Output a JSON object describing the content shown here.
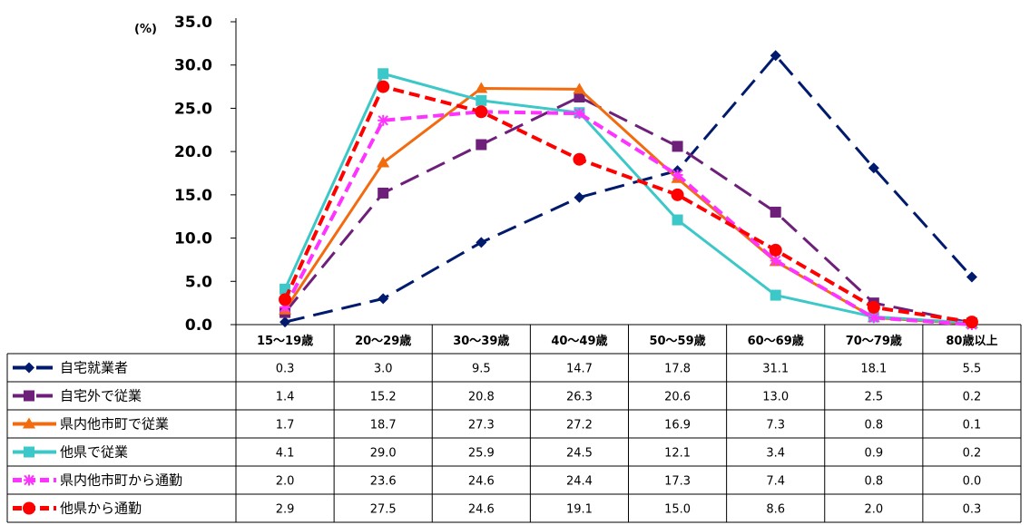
{
  "chart_data": {
    "type": "line",
    "unit_label": "(%)",
    "ylim": [
      0,
      35
    ],
    "ytick_step": 5,
    "ytick_labels": [
      "0.0",
      "5.0",
      "10.0",
      "15.0",
      "20.0",
      "25.0",
      "30.0",
      "35.0"
    ],
    "categories": [
      "15～19歳",
      "20～29歳",
      "30～39歳",
      "40～49歳",
      "50～59歳",
      "60～69歳",
      "70～79歳",
      "80歳以上"
    ],
    "grid": false,
    "legend": "data-table-left",
    "series": [
      {
        "name": "自宅就業者",
        "color": "#001A6E",
        "marker": "diamond",
        "dash": "long",
        "values": [
          0.3,
          3.0,
          9.5,
          14.7,
          17.8,
          31.1,
          18.1,
          5.5
        ],
        "labels": [
          "0.3",
          "3.0",
          "9.5",
          "14.7",
          "17.8",
          "31.1",
          "18.1",
          "5.5"
        ]
      },
      {
        "name": "自宅外で従業",
        "color": "#6E1F7A",
        "marker": "square",
        "dash": "long",
        "values": [
          1.4,
          15.2,
          20.8,
          26.3,
          20.6,
          13.0,
          2.5,
          0.2
        ],
        "labels": [
          "1.4",
          "15.2",
          "20.8",
          "26.3",
          "20.6",
          "13.0",
          "2.5",
          "0.2"
        ]
      },
      {
        "name": "県内他市町で従業",
        "color": "#F26B0F",
        "marker": "triangle",
        "dash": "solid",
        "values": [
          1.7,
          18.7,
          27.3,
          27.2,
          16.9,
          7.3,
          0.8,
          0.1
        ],
        "labels": [
          "1.7",
          "18.7",
          "27.3",
          "27.2",
          "16.9",
          "7.3",
          "0.8",
          "0.1"
        ]
      },
      {
        "name": "他県で従業",
        "color": "#3CC8C8",
        "marker": "square",
        "dash": "solid",
        "values": [
          4.1,
          29.0,
          25.9,
          24.5,
          12.1,
          3.4,
          0.9,
          0.2
        ],
        "labels": [
          "4.1",
          "29.0",
          "25.9",
          "24.5",
          "12.1",
          "3.4",
          "0.9",
          "0.2"
        ]
      },
      {
        "name": "県内他市町から通勤",
        "color": "#FF33FF",
        "marker": "star",
        "dash": "dash",
        "values": [
          2.0,
          23.6,
          24.6,
          24.4,
          17.3,
          7.4,
          0.8,
          0.0
        ],
        "labels": [
          "2.0",
          "23.6",
          "24.6",
          "24.4",
          "17.3",
          "7.4",
          "0.8",
          "0.0"
        ]
      },
      {
        "name": "他県から通勤",
        "color": "#FF0000",
        "marker": "circle",
        "dash": "dash",
        "values": [
          2.9,
          27.5,
          24.6,
          19.1,
          15.0,
          8.6,
          2.0,
          0.3
        ],
        "labels": [
          "2.9",
          "27.5",
          "24.6",
          "19.1",
          "15.0",
          "8.6",
          "2.0",
          "0.3"
        ]
      }
    ]
  }
}
